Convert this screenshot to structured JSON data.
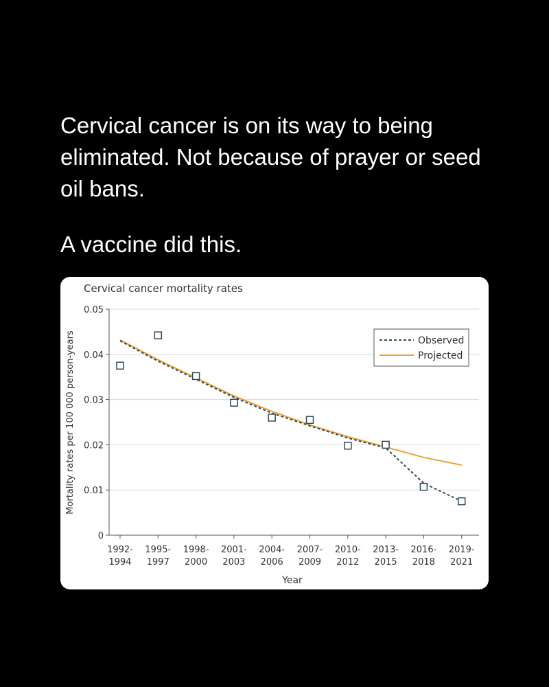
{
  "post": {
    "headline": "Cervical cancer is on its way to being eliminated. Not because of prayer or seed oil bans.",
    "subline": "A vaccine did this."
  },
  "colors": {
    "background": "#000000",
    "text": "#ffffff",
    "card": "#ffffff",
    "observed": "#2e4a5c",
    "projected": "#f0a030",
    "marker": "#2e4a5c"
  },
  "chart_data": {
    "type": "line",
    "title": "Cervical cancer mortality rates",
    "xlabel": "Year",
    "ylabel": "Mortality rates per 100 000 person-years",
    "categories": [
      [
        "1992-",
        "1994"
      ],
      [
        "1995-",
        "1997"
      ],
      [
        "1998-",
        "2000"
      ],
      [
        "2001-",
        "2003"
      ],
      [
        "2004-",
        "2006"
      ],
      [
        "2007-",
        "2009"
      ],
      [
        "2010-",
        "2012"
      ],
      [
        "2013-",
        "2015"
      ],
      [
        "2016-",
        "2018"
      ],
      [
        "2019-",
        "2021"
      ]
    ],
    "ylim": [
      0,
      0.05
    ],
    "yticks": [
      "0",
      "0.01",
      "0.02",
      "0.03",
      "0.04",
      "0.05"
    ],
    "grid": true,
    "legend_position": "top-right",
    "series": [
      {
        "name": "Observed",
        "style": "dashed",
        "values": [
          0.043,
          0.0385,
          0.0345,
          0.0305,
          0.027,
          0.0242,
          0.0215,
          0.0193,
          0.0115,
          0.0075
        ]
      },
      {
        "name": "Projected",
        "style": "solid",
        "values": [
          0.0432,
          0.0388,
          0.0348,
          0.0308,
          0.0274,
          0.0244,
          0.0218,
          0.0195,
          0.0172,
          0.0155
        ]
      }
    ],
    "points": [
      0.0375,
      0.0442,
      0.0352,
      0.0293,
      0.026,
      0.0255,
      0.0198,
      0.02,
      0.0107,
      0.0075
    ]
  }
}
